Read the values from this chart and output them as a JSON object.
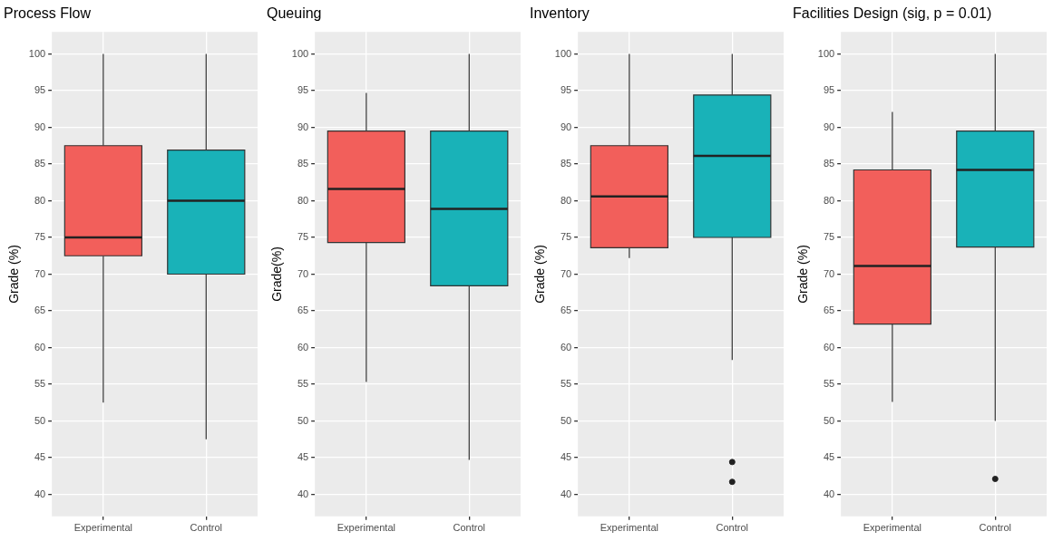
{
  "chart_data": [
    {
      "type": "box",
      "title": "Process Flow",
      "ylabel": "Grade (%)",
      "categories": [
        "Experimental",
        "Control"
      ],
      "colors": [
        "#f25f5b",
        "#19b2b8"
      ],
      "ylim": [
        37,
        103
      ],
      "yticks": [
        40,
        45,
        50,
        55,
        60,
        65,
        70,
        75,
        80,
        85,
        90,
        95,
        100
      ],
      "grid": true,
      "boxes": [
        {
          "low": 52.5,
          "q1": 72.5,
          "median": 75,
          "q3": 87.5,
          "high": 100
        },
        {
          "low": 47.5,
          "q1": 70,
          "median": 80,
          "q3": 86.9,
          "high": 100
        }
      ]
    },
    {
      "type": "box",
      "title": "Queuing",
      "ylabel": "Grade(%)",
      "categories": [
        "Experimental",
        "Control"
      ],
      "colors": [
        "#f25f5b",
        "#19b2b8"
      ],
      "ylim": [
        37,
        103
      ],
      "yticks": [
        40,
        45,
        50,
        55,
        60,
        65,
        70,
        75,
        80,
        85,
        90,
        95,
        100
      ],
      "grid": true,
      "boxes": [
        {
          "low": 55.3,
          "q1": 74.3,
          "median": 81.6,
          "q3": 89.5,
          "high": 94.7
        },
        {
          "low": 44.7,
          "q1": 68.4,
          "median": 78.9,
          "q3": 89.5,
          "high": 100
        }
      ]
    },
    {
      "type": "box",
      "title": "Inventory",
      "ylabel": "Grade (%)",
      "categories": [
        "Experimental",
        "Control"
      ],
      "colors": [
        "#f25f5b",
        "#19b2b8"
      ],
      "ylim": [
        37,
        103
      ],
      "yticks": [
        40,
        45,
        50,
        55,
        60,
        65,
        70,
        75,
        80,
        85,
        90,
        95,
        100
      ],
      "grid": true,
      "boxes": [
        {
          "low": 72.2,
          "q1": 73.6,
          "median": 80.6,
          "q3": 87.5,
          "high": 100
        },
        {
          "low": 58.3,
          "q1": 75,
          "median": 86.1,
          "q3": 94.4,
          "high": 100,
          "outliers": [
            44.4,
            41.7
          ]
        }
      ]
    },
    {
      "type": "box",
      "title": "Facilities Design (sig, p = 0.01)",
      "ylabel": "Grade (%)",
      "categories": [
        "Experimental",
        "Control"
      ],
      "colors": [
        "#f25f5b",
        "#19b2b8"
      ],
      "ylim": [
        37,
        103
      ],
      "yticks": [
        40,
        45,
        50,
        55,
        60,
        65,
        70,
        75,
        80,
        85,
        90,
        95,
        100
      ],
      "grid": true,
      "boxes": [
        {
          "low": 52.6,
          "q1": 63.2,
          "median": 71.1,
          "q3": 84.2,
          "high": 92.1
        },
        {
          "low": 50,
          "q1": 73.7,
          "median": 84.2,
          "q3": 89.5,
          "high": 100,
          "outliers": [
            42.1
          ]
        }
      ]
    }
  ]
}
